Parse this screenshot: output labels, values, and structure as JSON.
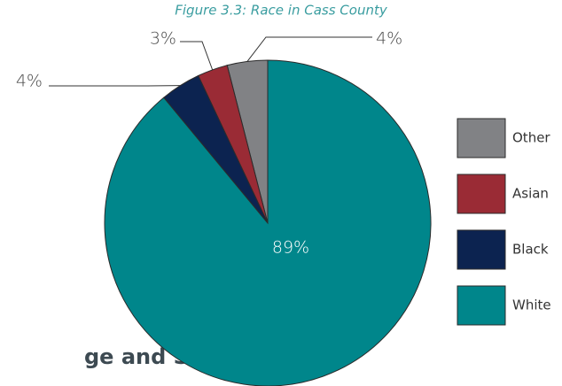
{
  "page_heading": "ge and Sex",
  "chart_data": {
    "type": "pie",
    "title": "Figure 3.3: Race in Cass County",
    "categories": [
      "Other",
      "Asian",
      "Black",
      "White"
    ],
    "values": [
      4,
      3,
      4,
      89
    ],
    "value_labels": [
      "4%",
      "3%",
      "4%",
      "89%"
    ],
    "colors": [
      "#818285",
      "#9a2b35",
      "#0c2350",
      "#00868b"
    ],
    "legend": "right"
  }
}
